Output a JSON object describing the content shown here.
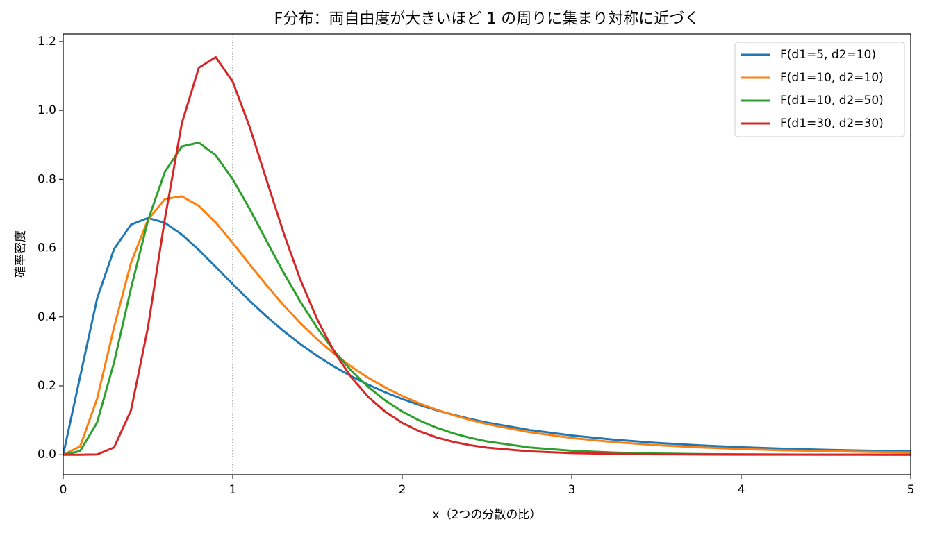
{
  "chart_data": {
    "type": "line",
    "title": "F分布：両自由度が大きいほど 1 の周りに集まり対称に近づく",
    "x_label": "x（2つの分散の比）",
    "y_label": "確率密度",
    "x": [
      0,
      0.1,
      0.2,
      0.3,
      0.4,
      0.5,
      0.6,
      0.7,
      0.8,
      0.9,
      1.0,
      1.1,
      1.2,
      1.3,
      1.4,
      1.5,
      1.6,
      1.7,
      1.8,
      1.9,
      2.0,
      2.1,
      2.2,
      2.3,
      2.4,
      2.5,
      2.75,
      3.0,
      3.25,
      3.5,
      3.75,
      4.0,
      4.25,
      4.5,
      4.75,
      5.0
    ],
    "series": [
      {
        "name": "F(d1=5, d2=10)",
        "color": "#1f77b4",
        "values": [
          0,
          0.2274,
          0.4537,
          0.5973,
          0.6683,
          0.6876,
          0.6735,
          0.6395,
          0.5948,
          0.5455,
          0.4955,
          0.447,
          0.4014,
          0.3593,
          0.321,
          0.2865,
          0.2555,
          0.2278,
          0.2032,
          0.1814,
          0.162,
          0.1448,
          0.1296,
          0.1161,
          0.1042,
          0.0936,
          0.072,
          0.0558,
          0.0437,
          0.0344,
          0.0273,
          0.0219,
          0.0177,
          0.0143,
          0.0117,
          0.0096
        ]
      },
      {
        "name": "F(d1=10, d2=10)",
        "color": "#ff7f0e",
        "values": [
          0,
          0.0243,
          0.1628,
          0.3702,
          0.5576,
          0.6828,
          0.7426,
          0.7504,
          0.7228,
          0.6742,
          0.6152,
          0.553,
          0.4919,
          0.4343,
          0.3817,
          0.3344,
          0.2925,
          0.2556,
          0.2233,
          0.1952,
          0.1707,
          0.1495,
          0.1311,
          0.1151,
          0.1012,
          0.0892,
          0.0655,
          0.0487,
          0.0366,
          0.0278,
          0.0213,
          0.0165,
          0.0129,
          0.0102,
          0.0081,
          0.0065
        ]
      },
      {
        "name": "F(d1=10, d2=50)",
        "color": "#2ca02c",
        "values": [
          0,
          0.0105,
          0.0937,
          0.268,
          0.4834,
          0.6806,
          0.8219,
          0.8954,
          0.9066,
          0.8695,
          0.8004,
          0.7138,
          0.6207,
          0.529,
          0.4436,
          0.3671,
          0.3006,
          0.244,
          0.1967,
          0.1576,
          0.1256,
          0.0997,
          0.079,
          0.0624,
          0.0492,
          0.0387,
          0.0212,
          0.0116,
          0.0063,
          0.0035,
          0.0019,
          0.0011,
          0.0006,
          0.0003,
          0.0002,
          0.0001
        ]
      },
      {
        "name": "F(d1=30, d2=30)",
        "color": "#d62728",
        "values": [
          0,
          1e-06,
          0.0008,
          0.0212,
          0.129,
          0.3703,
          0.6859,
          0.963,
          1.1242,
          1.1548,
          1.0835,
          0.952,
          0.7973,
          0.6443,
          0.5072,
          0.3916,
          0.298,
          0.2245,
          0.1678,
          0.1248,
          0.0926,
          0.0686,
          0.0507,
          0.0375,
          0.0278,
          0.0206,
          0.0099,
          0.0048,
          0.0024,
          0.0012,
          0.0006,
          0.0003,
          0.0002,
          0.0001,
          0.0001,
          0.0
        ]
      }
    ],
    "xlim": [
      0,
      5
    ],
    "xticks": [
      0,
      1,
      2,
      3,
      4,
      5
    ],
    "ylim": [
      -0.058,
      1.222
    ],
    "yticks": [
      {
        "value": 0,
        "label": "0.0"
      },
      0.2,
      0.4,
      0.6,
      0.8,
      {
        "value": 1,
        "label": "1.0"
      },
      1.2
    ],
    "vline": 1,
    "vline_color": "#808080",
    "legend": "upper right",
    "grid": false
  }
}
